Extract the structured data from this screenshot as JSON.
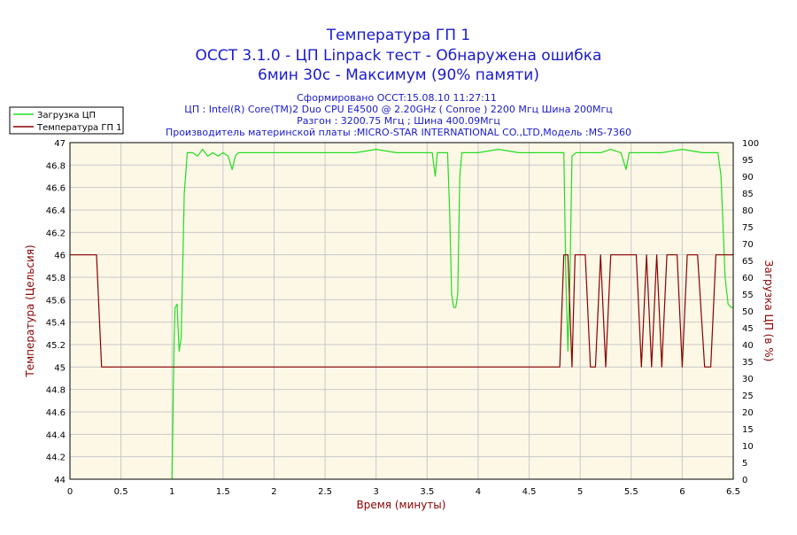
{
  "header": {
    "title_lines": [
      "Температура ГП 1",
      "OCCT 3.1.0 - ЦП Linpack тест - Обнаружена ошибка",
      "6мин 30с - Максимум (90% памяти)"
    ],
    "info_lines": [
      "Сформировано OCCT:15.08.10 11:27:11",
      "ЦП : Intel(R) Core(TM)2 Duo CPU E4500 @ 2.20GHz ( Conroe ) 2200 Мгц Шина 200Мгц",
      "Разгон : 3200.75 Мгц ; Шина 400.09Мгц",
      "Производитель материнской платы :MICRO-STAR INTERNATIONAL CO.,LTD,Модель :MS-7360"
    ]
  },
  "colors": {
    "title": "#1a1acc",
    "cpu_load_line": "#22dd22",
    "gpu_temp_line": "#8b0000",
    "plot_background": "#fdf8e6",
    "grid": "#c8c8c8",
    "left_axis_label": "#8b0000",
    "right_axis_label": "#8b0000"
  },
  "chart_data": {
    "type": "line",
    "xlabel": "Время (минуты)",
    "ylabel_left": "Температура (Цельсия)",
    "ylabel_right": "Загрузка ЦП (в %)",
    "xlim": [
      0,
      6.5
    ],
    "ylim_left": [
      44,
      47
    ],
    "ylim_right": [
      0,
      100
    ],
    "grid": true,
    "legend_position": "top-left",
    "x_ticks": [
      "0",
      "0.5",
      "1",
      "1.5",
      "2",
      "2.5",
      "3",
      "3.5",
      "4",
      "4.5",
      "5",
      "5.5",
      "6",
      "6.5"
    ],
    "y_left_ticks": [
      "44",
      "44.2",
      "44.4",
      "44.6",
      "44.8",
      "45",
      "45.2",
      "45.4",
      "45.6",
      "45.8",
      "46",
      "46.2",
      "46.4",
      "46.6",
      "46.8",
      "47"
    ],
    "y_right_ticks": [
      "0",
      "5",
      "10",
      "15",
      "20",
      "25",
      "30",
      "35",
      "40",
      "45",
      "50",
      "55",
      "60",
      "65",
      "70",
      "75",
      "80",
      "85",
      "90",
      "95",
      "100"
    ],
    "series": [
      {
        "name": "Загрузка ЦП",
        "axis": "right",
        "points": [
          [
            1.0,
            0
          ],
          [
            1.01,
            20
          ],
          [
            1.02,
            40
          ],
          [
            1.03,
            51
          ],
          [
            1.05,
            52
          ],
          [
            1.06,
            45
          ],
          [
            1.07,
            38
          ],
          [
            1.09,
            42
          ],
          [
            1.12,
            85
          ],
          [
            1.15,
            97
          ],
          [
            1.2,
            97
          ],
          [
            1.25,
            96
          ],
          [
            1.3,
            98
          ],
          [
            1.35,
            96
          ],
          [
            1.4,
            97
          ],
          [
            1.45,
            96
          ],
          [
            1.5,
            97
          ],
          [
            1.55,
            96
          ],
          [
            1.59,
            92
          ],
          [
            1.62,
            96
          ],
          [
            1.65,
            97
          ],
          [
            1.8,
            97
          ],
          [
            2.0,
            97
          ],
          [
            2.2,
            97
          ],
          [
            2.4,
            97
          ],
          [
            2.6,
            97
          ],
          [
            2.8,
            97
          ],
          [
            3.0,
            98
          ],
          [
            3.2,
            97
          ],
          [
            3.4,
            97
          ],
          [
            3.55,
            97
          ],
          [
            3.58,
            90
          ],
          [
            3.6,
            97
          ],
          [
            3.7,
            97
          ],
          [
            3.72,
            80
          ],
          [
            3.74,
            55
          ],
          [
            3.76,
            51
          ],
          [
            3.78,
            51
          ],
          [
            3.8,
            55
          ],
          [
            3.82,
            90
          ],
          [
            3.84,
            97
          ],
          [
            4.0,
            97
          ],
          [
            4.2,
            98
          ],
          [
            4.4,
            97
          ],
          [
            4.6,
            97
          ],
          [
            4.8,
            97
          ],
          [
            4.84,
            97
          ],
          [
            4.86,
            60
          ],
          [
            4.88,
            38
          ],
          [
            4.9,
            60
          ],
          [
            4.92,
            96
          ],
          [
            4.96,
            97
          ],
          [
            5.0,
            97
          ],
          [
            5.2,
            97
          ],
          [
            5.3,
            98
          ],
          [
            5.4,
            97
          ],
          [
            5.45,
            92
          ],
          [
            5.48,
            97
          ],
          [
            5.6,
            97
          ],
          [
            5.8,
            97
          ],
          [
            6.0,
            98
          ],
          [
            6.2,
            97
          ],
          [
            6.35,
            97
          ],
          [
            6.38,
            90
          ],
          [
            6.42,
            60
          ],
          [
            6.45,
            52
          ],
          [
            6.48,
            51
          ],
          [
            6.5,
            51
          ]
        ]
      },
      {
        "name": "Температура ГП 1",
        "axis": "left",
        "points": [
          [
            0,
            46
          ],
          [
            0.26,
            46
          ],
          [
            0.31,
            45
          ],
          [
            4.8,
            45
          ],
          [
            4.84,
            46
          ],
          [
            4.88,
            46
          ],
          [
            4.92,
            45
          ],
          [
            4.95,
            46
          ],
          [
            5.05,
            46
          ],
          [
            5.1,
            45
          ],
          [
            5.15,
            45
          ],
          [
            5.2,
            46
          ],
          [
            5.25,
            45
          ],
          [
            5.3,
            46
          ],
          [
            5.55,
            46
          ],
          [
            5.6,
            45
          ],
          [
            5.65,
            46
          ],
          [
            5.7,
            45
          ],
          [
            5.75,
            46
          ],
          [
            5.8,
            45
          ],
          [
            5.85,
            46
          ],
          [
            5.95,
            46
          ],
          [
            6.0,
            45
          ],
          [
            6.05,
            46
          ],
          [
            6.15,
            46
          ],
          [
            6.22,
            45
          ],
          [
            6.28,
            45
          ],
          [
            6.33,
            46
          ],
          [
            6.5,
            46
          ]
        ]
      }
    ]
  }
}
